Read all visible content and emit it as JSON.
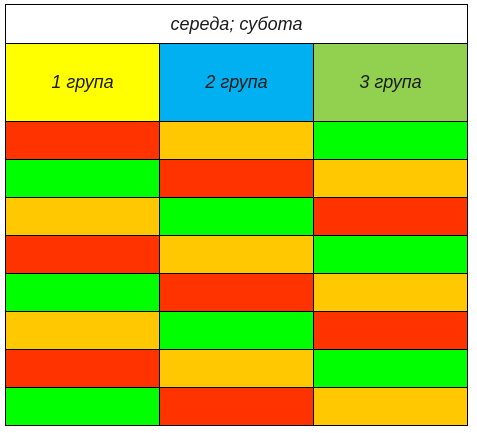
{
  "title": "середа; субота",
  "groups": [
    {
      "label": "1 група",
      "color": "#ffff00"
    },
    {
      "label": "2 група",
      "color": "#00b0f0"
    },
    {
      "label": "3 група",
      "color": "#92d050"
    }
  ],
  "palette": {
    "red": "#ff3300",
    "orange": "#ffc800",
    "green": "#00ff00"
  },
  "rows": [
    [
      "red",
      "orange",
      "green"
    ],
    [
      "green",
      "red",
      "orange"
    ],
    [
      "orange",
      "green",
      "red"
    ],
    [
      "red",
      "orange",
      "green"
    ],
    [
      "green",
      "red",
      "orange"
    ],
    [
      "orange",
      "green",
      "red"
    ],
    [
      "red",
      "orange",
      "green"
    ],
    [
      "green",
      "red",
      "orange"
    ]
  ]
}
